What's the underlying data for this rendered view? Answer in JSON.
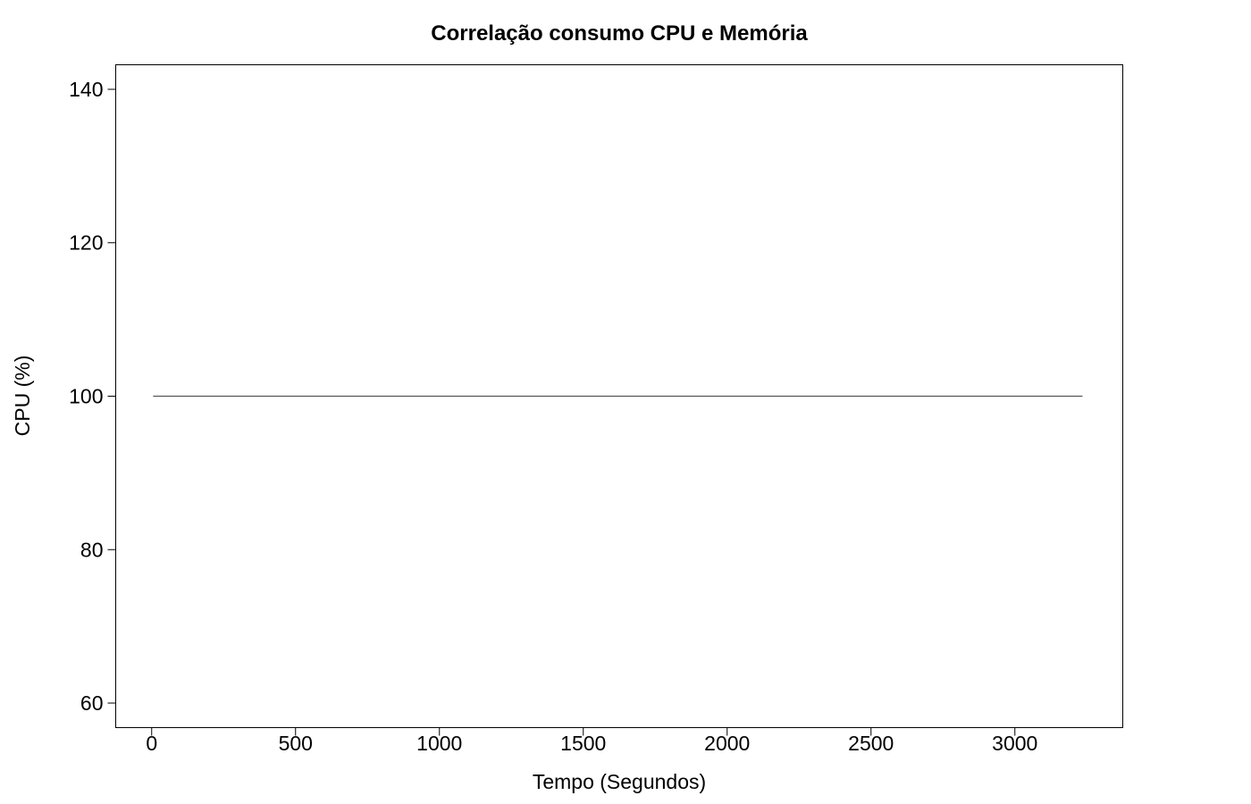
{
  "chart_data": {
    "type": "line",
    "title": "Correlação consumo CPU e Memória",
    "xlabel": "Tempo (Segundos)",
    "ylabel": "CPU (%)",
    "xlim": [
      -125,
      3375
    ],
    "ylim": [
      56.8,
      143.2
    ],
    "xticks": [
      0,
      500,
      1000,
      1500,
      2000,
      2500,
      3000
    ],
    "yticks": [
      60,
      80,
      100,
      120,
      140
    ],
    "grid": false,
    "series": [
      {
        "color": "#555555",
        "x": [
          5,
          3235
        ],
        "y": [
          100,
          100
        ]
      }
    ]
  }
}
